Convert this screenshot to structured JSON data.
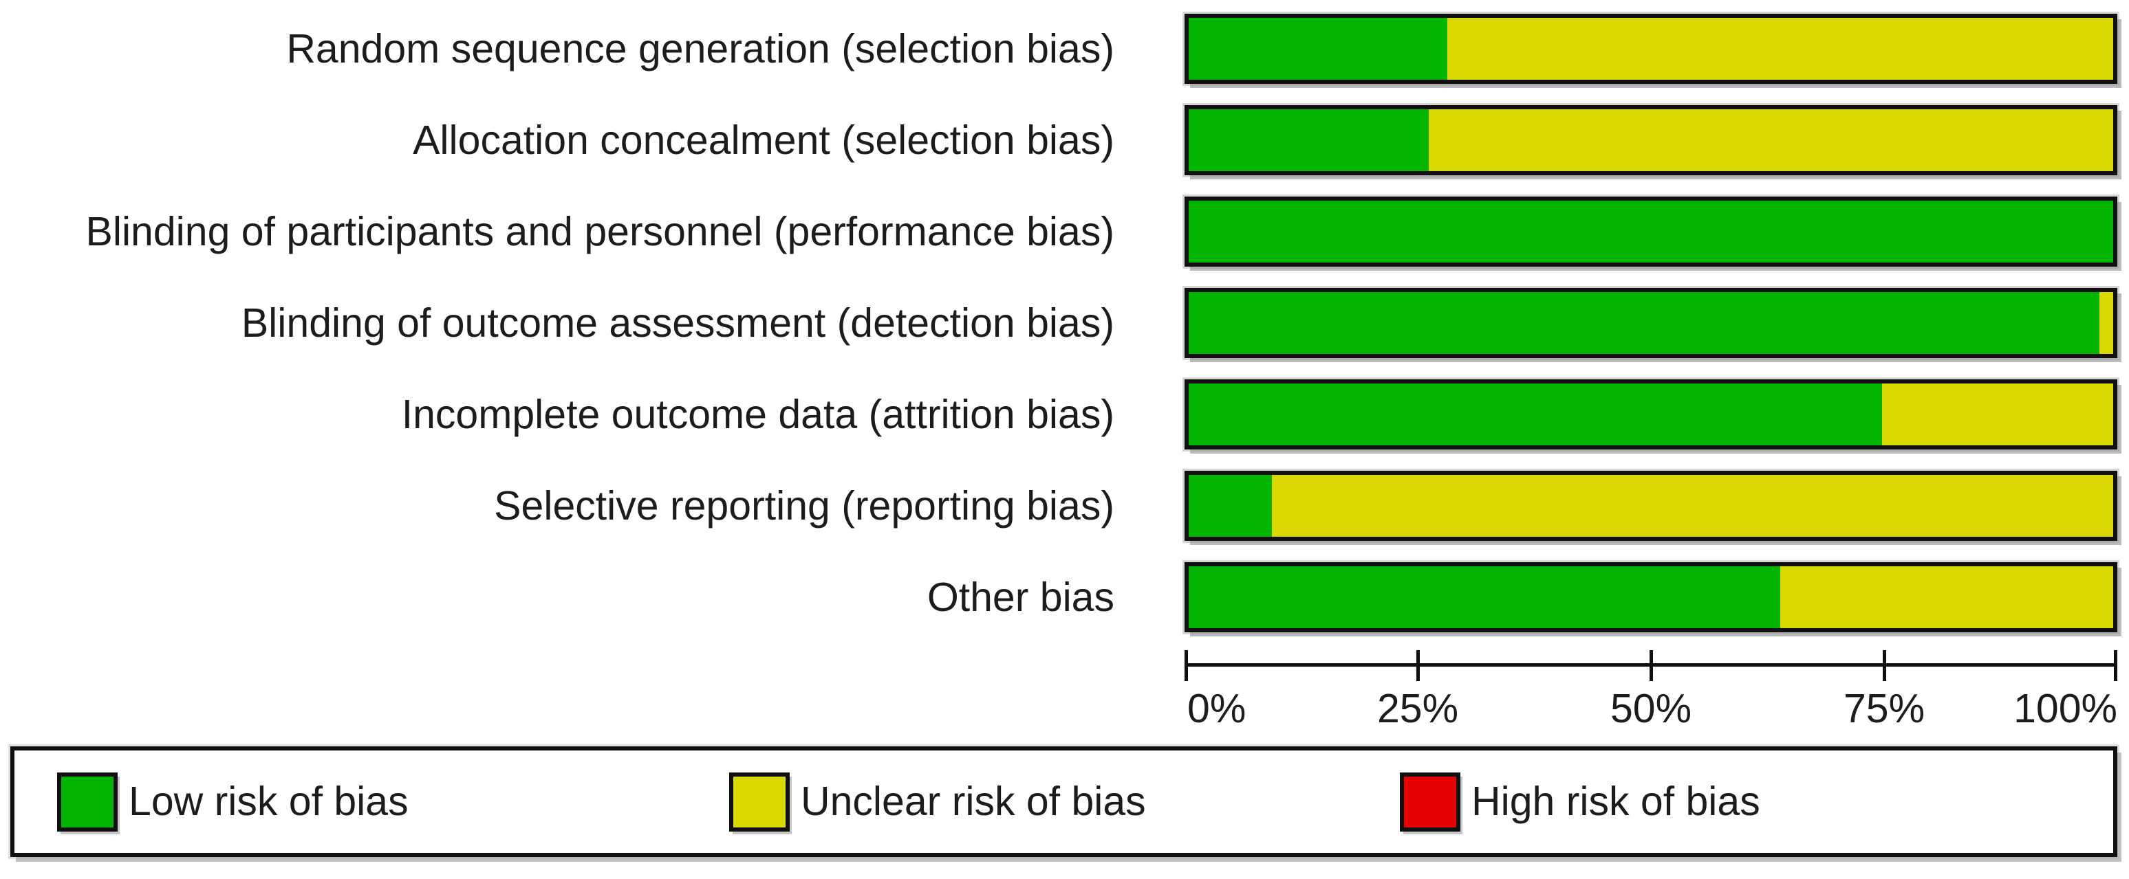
{
  "chart_data": {
    "type": "bar",
    "orientation": "horizontal",
    "stacked": true,
    "title": "",
    "xlabel": "",
    "ylabel": "",
    "xlim": [
      0,
      100
    ],
    "grid": false,
    "legend_position": "bottom",
    "categories": [
      "Random sequence generation (selection bias)",
      "Allocation concealment (selection bias)",
      "Blinding of participants and personnel (performance bias)",
      "Blinding of outcome assessment (detection bias)",
      "Incomplete outcome data (attrition bias)",
      "Selective reporting (reporting bias)",
      "Other bias"
    ],
    "series": [
      {
        "name": "Low risk of bias",
        "color": "#00b400",
        "values": [
          28,
          26,
          100,
          98.5,
          75,
          9,
          64
        ]
      },
      {
        "name": "Unclear risk of bias",
        "color": "#d9d800",
        "values": [
          72,
          74,
          0,
          1.5,
          25,
          91,
          36
        ]
      },
      {
        "name": "High risk of bias",
        "color": "#e60000",
        "values": [
          0,
          0,
          0,
          0,
          0,
          0,
          0
        ]
      }
    ],
    "x_tick_labels": [
      "0%",
      "25%",
      "50%",
      "75%",
      "100%"
    ]
  },
  "legend": {
    "items": [
      {
        "label": "Low risk of bias",
        "color": "#00b400",
        "swatch_icon": "low-risk-swatch"
      },
      {
        "label": "Unclear risk of bias",
        "color": "#d9d800",
        "swatch_icon": "unclear-risk-swatch"
      },
      {
        "label": "High risk of bias",
        "color": "#e60000",
        "swatch_icon": "high-risk-swatch"
      }
    ]
  },
  "colors": {
    "bar_border": "#101010",
    "text": "#1c1c1c",
    "background": "#ffffff"
  }
}
